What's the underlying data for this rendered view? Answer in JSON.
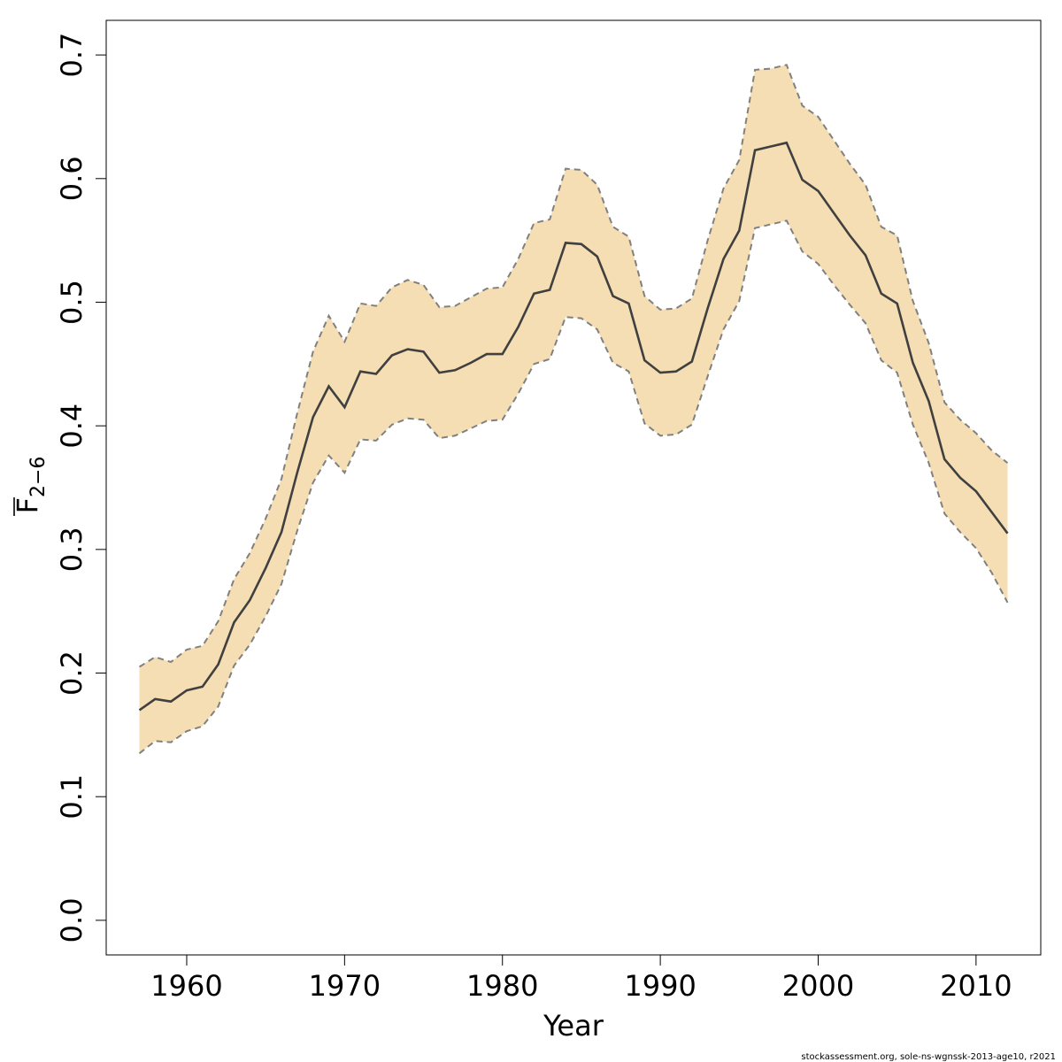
{
  "chart_data": {
    "type": "area",
    "xlabel": "Year",
    "ylabel": {
      "main": "F",
      "sub": "2−6",
      "overbar": true
    },
    "xlim": [
      1954.9,
      2014.1
    ],
    "ylim": [
      -0.028,
      0.728
    ],
    "xticks": [
      1960,
      1970,
      1980,
      1990,
      2000,
      2010
    ],
    "yticks": [
      0.0,
      0.1,
      0.2,
      0.3,
      0.4,
      0.5,
      0.6,
      0.7
    ],
    "ytick_labels": [
      "0.0",
      "0.1",
      "0.2",
      "0.3",
      "0.4",
      "0.5",
      "0.6",
      "0.7"
    ],
    "colors": {
      "band": "#F5DEB3",
      "line": "#404040",
      "bound": "#808080",
      "axis": "#000000"
    },
    "years": [
      1957,
      1958,
      1959,
      1960,
      1961,
      1962,
      1963,
      1964,
      1965,
      1966,
      1967,
      1968,
      1969,
      1970,
      1971,
      1972,
      1973,
      1974,
      1975,
      1976,
      1977,
      1978,
      1979,
      1980,
      1981,
      1982,
      1983,
      1984,
      1985,
      1986,
      1987,
      1988,
      1989,
      1990,
      1991,
      1992,
      1993,
      1994,
      1995,
      1996,
      1997,
      1998,
      1999,
      2000,
      2001,
      2002,
      2003,
      2004,
      2005,
      2006,
      2007,
      2008,
      2009,
      2010,
      2011,
      2012
    ],
    "series": [
      {
        "name": "estimate",
        "values": [
          0.17,
          0.179,
          0.177,
          0.186,
          0.189,
          0.207,
          0.241,
          0.259,
          0.285,
          0.314,
          0.362,
          0.407,
          0.432,
          0.415,
          0.444,
          0.442,
          0.457,
          0.462,
          0.46,
          0.443,
          0.445,
          0.451,
          0.458,
          0.458,
          0.48,
          0.507,
          0.51,
          0.548,
          0.547,
          0.537,
          0.505,
          0.499,
          0.453,
          0.443,
          0.444,
          0.452,
          0.495,
          0.535,
          0.558,
          0.623,
          0.626,
          0.629,
          0.599,
          0.59,
          0.572,
          0.554,
          0.538,
          0.507,
          0.499,
          0.451,
          0.42,
          0.373,
          0.358,
          0.347,
          0.33,
          0.313
        ]
      },
      {
        "name": "upper",
        "values": [
          0.205,
          0.213,
          0.209,
          0.219,
          0.222,
          0.242,
          0.276,
          0.297,
          0.325,
          0.357,
          0.41,
          0.46,
          0.489,
          0.468,
          0.499,
          0.497,
          0.512,
          0.518,
          0.514,
          0.496,
          0.497,
          0.504,
          0.511,
          0.512,
          0.535,
          0.564,
          0.567,
          0.608,
          0.607,
          0.595,
          0.561,
          0.553,
          0.505,
          0.494,
          0.495,
          0.503,
          0.55,
          0.592,
          0.615,
          0.688,
          0.689,
          0.692,
          0.659,
          0.65,
          0.631,
          0.612,
          0.595,
          0.561,
          0.554,
          0.501,
          0.467,
          0.419,
          0.405,
          0.394,
          0.38,
          0.37
        ]
      },
      {
        "name": "lower",
        "values": [
          0.135,
          0.145,
          0.144,
          0.153,
          0.157,
          0.173,
          0.206,
          0.223,
          0.246,
          0.272,
          0.315,
          0.354,
          0.376,
          0.362,
          0.389,
          0.388,
          0.401,
          0.406,
          0.405,
          0.39,
          0.392,
          0.398,
          0.404,
          0.405,
          0.426,
          0.45,
          0.454,
          0.488,
          0.487,
          0.478,
          0.451,
          0.444,
          0.402,
          0.392,
          0.393,
          0.401,
          0.44,
          0.478,
          0.501,
          0.56,
          0.563,
          0.566,
          0.541,
          0.531,
          0.514,
          0.498,
          0.483,
          0.453,
          0.443,
          0.401,
          0.37,
          0.329,
          0.314,
          0.301,
          0.281,
          0.257
        ]
      }
    ]
  },
  "footer": {
    "credit": "stockassessment.org, sole-ns-wgnssk-2013-age10, r2021"
  }
}
